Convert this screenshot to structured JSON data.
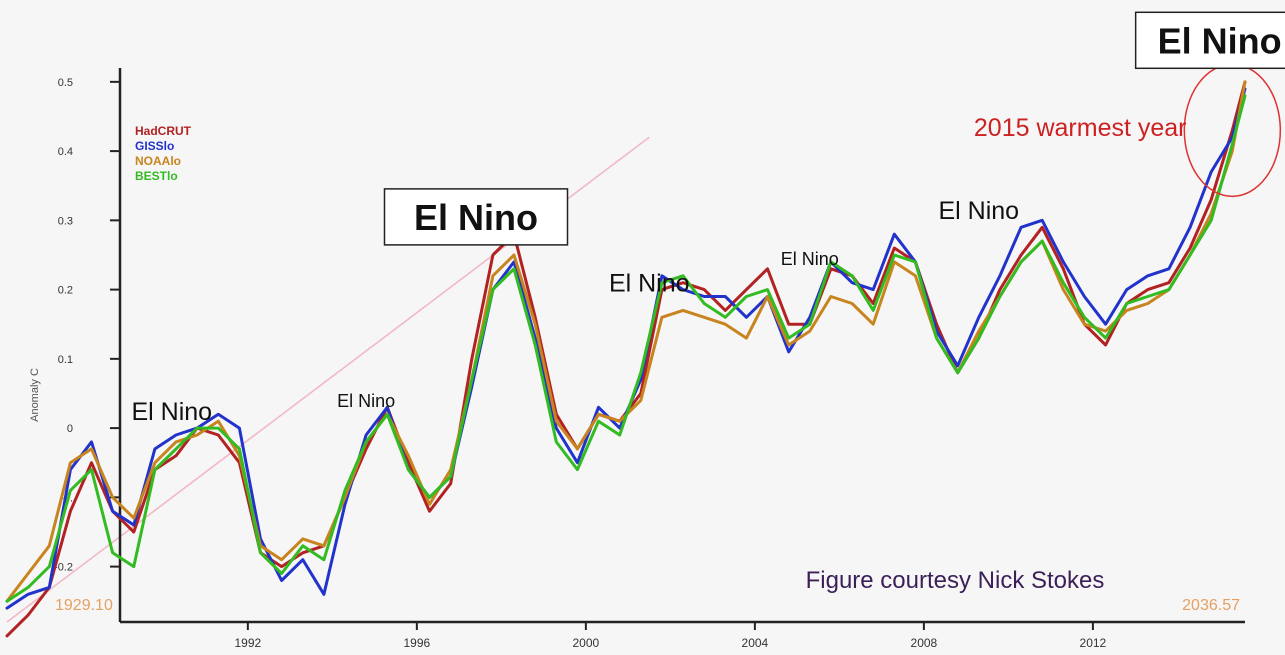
{
  "chart_data": {
    "type": "line",
    "title": "",
    "xlabel": "",
    "ylabel": "Anomaly C",
    "xlim": [
      1986.3,
      2015.6
    ],
    "ylim": [
      -0.28,
      0.52
    ],
    "grid": false,
    "legend_position": "top-left",
    "x_ticks": [
      1992,
      1996,
      2000,
      2004,
      2008,
      2012
    ],
    "y_ticks": [
      {
        "value": 0.5,
        "label": "0.5"
      },
      {
        "value": 0.4,
        "label": "0.4"
      },
      {
        "value": 0.3,
        "label": "0.3"
      },
      {
        "value": 0.2,
        "label": "0.2"
      },
      {
        "value": 0.1,
        "label": "0.1"
      },
      {
        "value": 0.0,
        "label": "0"
      },
      {
        "value": -0.1,
        "label": "-0."
      },
      {
        "value": -0.2,
        "label": "-0.2"
      }
    ],
    "x": [
      1986.3,
      1986.8,
      1987.3,
      1987.8,
      1988.3,
      1988.8,
      1989.3,
      1989.8,
      1990.3,
      1990.8,
      1991.3,
      1991.8,
      1992.3,
      1992.8,
      1993.3,
      1993.8,
      1994.3,
      1994.8,
      1995.3,
      1995.8,
      1996.3,
      1996.8,
      1997.3,
      1997.8,
      1998.3,
      1998.8,
      1999.3,
      1999.8,
      2000.3,
      2000.8,
      2001.3,
      2001.8,
      2002.3,
      2002.8,
      2003.3,
      2003.8,
      2004.3,
      2004.8,
      2005.3,
      2005.8,
      2006.3,
      2006.8,
      2007.3,
      2007.8,
      2008.3,
      2008.8,
      2009.3,
      2009.8,
      2010.3,
      2010.8,
      2011.3,
      2011.8,
      2012.3,
      2012.8,
      2013.3,
      2013.8,
      2014.3,
      2014.8,
      2015.3,
      2015.6
    ],
    "series": [
      {
        "name": "HadCRUT",
        "color": "#b22222",
        "values": [
          -0.3,
          -0.27,
          -0.23,
          -0.12,
          -0.05,
          -0.12,
          -0.15,
          -0.06,
          -0.04,
          0,
          -0.01,
          -0.05,
          -0.18,
          -0.2,
          -0.18,
          -0.17,
          -0.1,
          -0.03,
          0.03,
          -0.05,
          -0.12,
          -0.08,
          0.1,
          0.25,
          0.28,
          0.16,
          0.02,
          -0.03,
          0.02,
          0.01,
          0.05,
          0.2,
          0.21,
          0.2,
          0.17,
          0.2,
          0.23,
          0.15,
          0.15,
          0.23,
          0.22,
          0.18,
          0.26,
          0.24,
          0.15,
          0.08,
          0.13,
          0.2,
          0.25,
          0.29,
          0.23,
          0.15,
          0.12,
          0.18,
          0.2,
          0.21,
          0.26,
          0.33,
          0.43,
          0.5
        ]
      },
      {
        "name": "GISSlo",
        "color": "#2233cc",
        "values": [
          -0.26,
          -0.24,
          -0.23,
          -0.06,
          -0.02,
          -0.12,
          -0.14,
          -0.03,
          -0.01,
          0,
          0.02,
          0,
          -0.16,
          -0.22,
          -0.19,
          -0.24,
          -0.11,
          -0.01,
          0.03,
          -0.06,
          -0.1,
          -0.07,
          0.06,
          0.2,
          0.24,
          0.13,
          0,
          -0.05,
          0.03,
          0,
          0.07,
          0.22,
          0.2,
          0.19,
          0.19,
          0.16,
          0.19,
          0.11,
          0.16,
          0.24,
          0.21,
          0.2,
          0.28,
          0.24,
          0.14,
          0.09,
          0.16,
          0.22,
          0.29,
          0.3,
          0.24,
          0.19,
          0.15,
          0.2,
          0.22,
          0.23,
          0.29,
          0.37,
          0.42,
          0.49
        ]
      },
      {
        "name": "NOAAlo",
        "color": "#c8841e",
        "values": [
          -0.25,
          -0.21,
          -0.17,
          -0.05,
          -0.03,
          -0.1,
          -0.13,
          -0.05,
          -0.02,
          -0.01,
          0.01,
          -0.04,
          -0.17,
          -0.19,
          -0.16,
          -0.17,
          -0.1,
          -0.02,
          0.02,
          -0.04,
          -0.11,
          -0.06,
          0.07,
          0.22,
          0.25,
          0.15,
          0.01,
          -0.03,
          0.02,
          0.01,
          0.04,
          0.16,
          0.17,
          0.16,
          0.15,
          0.13,
          0.19,
          0.12,
          0.14,
          0.19,
          0.18,
          0.15,
          0.24,
          0.22,
          0.13,
          0.08,
          0.14,
          0.19,
          0.24,
          0.27,
          0.2,
          0.15,
          0.14,
          0.17,
          0.18,
          0.2,
          0.25,
          0.31,
          0.4,
          0.5
        ]
      },
      {
        "name": "BESTlo",
        "color": "#33bb22",
        "values": [
          -0.25,
          -0.23,
          -0.2,
          -0.09,
          -0.06,
          -0.18,
          -0.2,
          -0.06,
          -0.03,
          0,
          0,
          -0.03,
          -0.18,
          -0.21,
          -0.17,
          -0.19,
          -0.09,
          -0.02,
          0.02,
          -0.06,
          -0.1,
          -0.07,
          0.07,
          0.2,
          0.23,
          0.12,
          -0.02,
          -0.06,
          0.01,
          -0.01,
          0.08,
          0.21,
          0.22,
          0.18,
          0.16,
          0.19,
          0.2,
          0.13,
          0.15,
          0.24,
          0.22,
          0.17,
          0.25,
          0.24,
          0.13,
          0.08,
          0.13,
          0.19,
          0.24,
          0.27,
          0.21,
          0.16,
          0.13,
          0.18,
          0.19,
          0.2,
          0.25,
          0.3,
          0.41,
          0.48
        ]
      }
    ],
    "trend_line": {
      "start_year": 1986.3,
      "start_value": -0.28,
      "end_year": 2001.5,
      "end_value": 0.42,
      "color": "#f2b8c6"
    },
    "trend_labels": {
      "start": "1929.10",
      "end": "2036.57",
      "color": "#e6a060"
    },
    "annotations": [
      {
        "text": "El Nino",
        "year": 1990.2,
        "value": 0.025,
        "style": "plain",
        "size": "medium"
      },
      {
        "text": "El Nino",
        "year": 1994.8,
        "value": 0.04,
        "style": "plain",
        "size": "small"
      },
      {
        "text": "El Nino",
        "year": 1997.4,
        "value": 0.305,
        "style": "boxed",
        "size": "large"
      },
      {
        "text": "El Nino",
        "year": 2001.5,
        "value": 0.21,
        "style": "plain",
        "size": "medium"
      },
      {
        "text": "El Nino",
        "year": 2005.3,
        "value": 0.245,
        "style": "plain",
        "size": "small"
      },
      {
        "text": "El Nino",
        "year": 2009.3,
        "value": 0.315,
        "style": "plain",
        "size": "medium"
      },
      {
        "text": "El Nino",
        "year": 2015.0,
        "value": 0.56,
        "style": "boxed-cut",
        "size": "large"
      },
      {
        "text": "2015 warmest year",
        "year": 2011.7,
        "value": 0.435,
        "style": "red",
        "size": "medium"
      }
    ],
    "highlight_circle": {
      "year": 2015.3,
      "value": 0.43,
      "color": "#dd3333"
    },
    "credit": "Figure courtesy Nick Stokes",
    "credit_color": "#3c1f59"
  }
}
